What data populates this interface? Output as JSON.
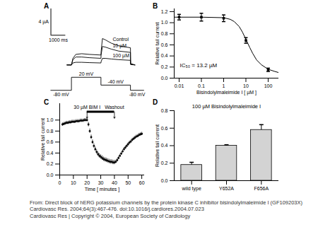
{
  "chart_data": [
    {
      "panel": "A",
      "type": "line",
      "tick_labels": false,
      "xlim": [
        -1500,
        5300
      ],
      "ylim": [
        -0.5,
        8.5
      ],
      "x": [
        0,
        300,
        400,
        600,
        1000,
        1500,
        2300,
        2310,
        2400,
        2600,
        3000,
        3500,
        4300,
        4310,
        4600
      ],
      "series": [
        {
          "name": "Control",
          "color": "#000000",
          "values": [
            0,
            0,
            1.0,
            1.6,
            1.7,
            1.6,
            1.5,
            2.0,
            4.0,
            3.8,
            3.3,
            2.9,
            2.6,
            0.2,
            0
          ]
        },
        {
          "name": "10 µM",
          "color": "#000000",
          "values": [
            0,
            0,
            0.8,
            1.2,
            1.2,
            1.1,
            1.0,
            1.5,
            2.8,
            2.7,
            2.4,
            2.1,
            1.9,
            0.15,
            0
          ]
        },
        {
          "name": "100 µM",
          "color": "#000000",
          "values": [
            0,
            0,
            0.3,
            0.4,
            0.4,
            0.35,
            0.3,
            0.5,
            1.0,
            1.0,
            0.9,
            0.8,
            0.7,
            0.05,
            0
          ]
        }
      ],
      "scale_bars": [
        {
          "label": "4 µA",
          "value": 4,
          "axis": "y"
        },
        {
          "label": "1000 ms",
          "value": 1000,
          "axis": "x"
        }
      ],
      "protocol": {
        "x": [
          -1100,
          300,
          300,
          2300,
          2300,
          4300,
          4300,
          5200
        ],
        "values": [
          -80,
          -80,
          20,
          20,
          -40,
          -40,
          -80,
          -80
        ],
        "ylim": [
          -95,
          35
        ],
        "labels": [
          {
            "text": "20 mV",
            "value": 20
          },
          {
            "text": "-40 mV",
            "value": -40
          },
          {
            "text": "-80 mV",
            "value": -80
          },
          {
            "text": "-80 mV",
            "value": -80
          }
        ]
      }
    },
    {
      "panel": "B",
      "type": "scatter",
      "log": "x",
      "marker": "square",
      "x_label": "Bisindolylmaleimide I [ µM ]",
      "y_label": "Relative tail current",
      "xlim": [
        0.006,
        300
      ],
      "xticks": [
        0.01,
        0.1,
        1,
        10,
        100
      ],
      "ylim": [
        0,
        1.25
      ],
      "yticks": [
        {
          "value": 0,
          "label": "0.0"
        },
        {
          "value": 0.2,
          "label": "0.2"
        },
        {
          "value": 0.4,
          "label": "0.4"
        },
        {
          "value": 0.6,
          "label": "0.6"
        },
        {
          "value": 0.8,
          "label": "0.8"
        },
        {
          "value": 1,
          "label": "1.0"
        },
        {
          "value": 1.2,
          "label": "1.2"
        }
      ],
      "x": [
        0.01,
        0.1,
        1,
        10,
        100
      ],
      "values": [
        1.1,
        1.1,
        1.08,
        0.68,
        0.15
      ],
      "errors": [
        0.05,
        0.07,
        0.06,
        0.05,
        0.03
      ],
      "fit": {
        "x": [
          0.006,
          0.01,
          0.1,
          1,
          2,
          3,
          5,
          7,
          10,
          15,
          20,
          30,
          50,
          100,
          200,
          300
        ],
        "values": [
          1.1,
          1.1,
          1.1,
          1.09,
          1.06,
          1.02,
          0.93,
          0.83,
          0.7,
          0.55,
          0.45,
          0.33,
          0.24,
          0.16,
          0.12,
          0.1
        ]
      },
      "annotation": "IC₅₀ = 13.2 µM"
    },
    {
      "panel": "C",
      "type": "scatter",
      "marker": "circle",
      "x_label": "Time [ minutes ]",
      "y_label": "Relative tail current",
      "xlim": [
        0,
        62
      ],
      "xticks": [
        0,
        10,
        20,
        30,
        40,
        50,
        60
      ],
      "ylim": [
        0,
        1.3
      ],
      "yticks": [
        {
          "value": 0,
          "label": "0.0"
        },
        {
          "value": 0.2,
          "label": "0.2"
        },
        {
          "value": 0.4,
          "label": "0.4"
        },
        {
          "value": 0.6,
          "label": "0.6"
        },
        {
          "value": 0.8,
          "label": "0.8"
        },
        {
          "value": 1,
          "label": "1.0"
        }
      ],
      "x": [
        2,
        3,
        4,
        5,
        6,
        7,
        8,
        9,
        10,
        11,
        12,
        13,
        14,
        15,
        16,
        17,
        18,
        19,
        20,
        21,
        22,
        23,
        24,
        25,
        26,
        27,
        28,
        29,
        30,
        31,
        32,
        33,
        34,
        35,
        36,
        37,
        38,
        39,
        40,
        41,
        42,
        43,
        44,
        45,
        46,
        47,
        48,
        49,
        50,
        51,
        52,
        53,
        54,
        55,
        56,
        57,
        58,
        59,
        60
      ],
      "values": [
        0.92,
        0.93,
        0.94,
        0.95,
        0.95,
        0.96,
        0.96,
        0.97,
        0.97,
        0.97,
        0.98,
        0.98,
        0.98,
        0.99,
        0.99,
        0.99,
        1.0,
        1.0,
        1.0,
        0.92,
        0.8,
        0.69,
        0.6,
        0.53,
        0.47,
        0.42,
        0.38,
        0.35,
        0.33,
        0.31,
        0.29,
        0.28,
        0.27,
        0.26,
        0.25,
        0.24,
        0.24,
        0.23,
        0.23,
        0.24,
        0.27,
        0.31,
        0.35,
        0.39,
        0.43,
        0.47,
        0.5,
        0.53,
        0.56,
        0.59,
        0.61,
        0.64,
        0.66,
        0.68,
        0.7,
        0.71,
        0.73,
        0.74,
        0.75
      ],
      "errors": [
        0.03,
        0.03,
        0.03,
        0.03,
        0.03,
        0.03,
        0.03,
        0.03,
        0.03,
        0.03,
        0.03,
        0.03,
        0.03,
        0.03,
        0.03,
        0.03,
        0.03,
        0.03,
        0.03,
        0.04,
        0.04,
        0.04,
        0.04,
        0.04,
        0.04,
        0.04,
        0.04,
        0.04,
        0.04,
        0.04,
        0.04,
        0.04,
        0.04,
        0.04,
        0.04,
        0.04,
        0.04,
        0.04,
        0.04,
        0.03,
        0.03,
        0.03,
        0.03,
        0.03,
        0.03,
        0.03,
        0.03,
        0.03,
        0.03,
        0.03,
        0.03,
        0.03,
        0.03,
        0.03,
        0.03,
        0.03,
        0.03,
        0.03,
        0.03
      ],
      "drug_application": {
        "label": "30 µM BIM I",
        "start": 20,
        "end": 40
      },
      "washout": {
        "label": "Washout",
        "time": 40
      }
    },
    {
      "panel": "D",
      "type": "bar",
      "title": "100 µM Bisindolylmaleimide I",
      "y_label": "Relative tail current",
      "color": "#d3d3d3",
      "categories": [
        "wild type",
        "Y652A",
        "F656A"
      ],
      "values": [
        0.18,
        0.4,
        0.58
      ],
      "errors": [
        0.03,
        0.01,
        0.06
      ],
      "ylim": [
        0,
        0.8
      ],
      "yticks": [
        {
          "value": 0,
          "label": "0.0"
        },
        {
          "value": 0.2,
          "label": "0.2"
        },
        {
          "value": 0.4,
          "label": "0.4"
        },
        {
          "value": 0.6,
          "label": "0.6"
        },
        {
          "value": 0.8,
          "label": "0.8"
        }
      ]
    }
  ],
  "caption": [
    "From: Direct block of hERG potassium channels by the protein kinase C inhibitor bisindolylmaleimide I (GF109203X)",
    "Cardiovasc Res. 2004;64(3):467-476. doi:10.1016/j.cardiores.2004.07.023",
    "Cardiovasc Res | Copyright © 2004, European Society of Cardiology"
  ]
}
